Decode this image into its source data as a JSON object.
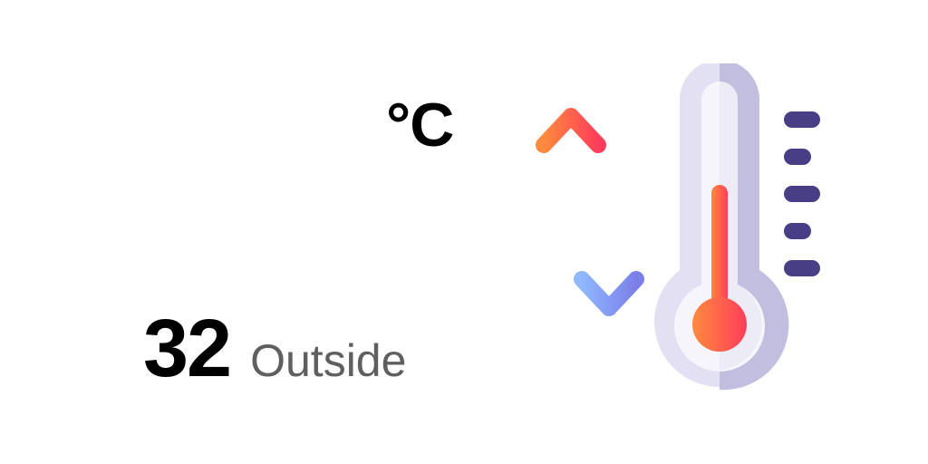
{
  "reading": {
    "unit": "°C",
    "value": "32",
    "location_label": "Outside"
  },
  "icons": {
    "thermometer": "thermometer-icon",
    "arrows": "temperature-change-arrows-icon"
  },
  "colors": {
    "warm_start": "#FF8A3D",
    "warm_end": "#FF3D5A",
    "cool_start": "#8FB8FF",
    "cool_end": "#7B7FE8",
    "thermo_body": "#E3E0F4",
    "thermo_shade": "#C2BEE0",
    "scale_marks": "#473E86",
    "text_primary": "#000000",
    "text_secondary": "#5f5f5f"
  }
}
